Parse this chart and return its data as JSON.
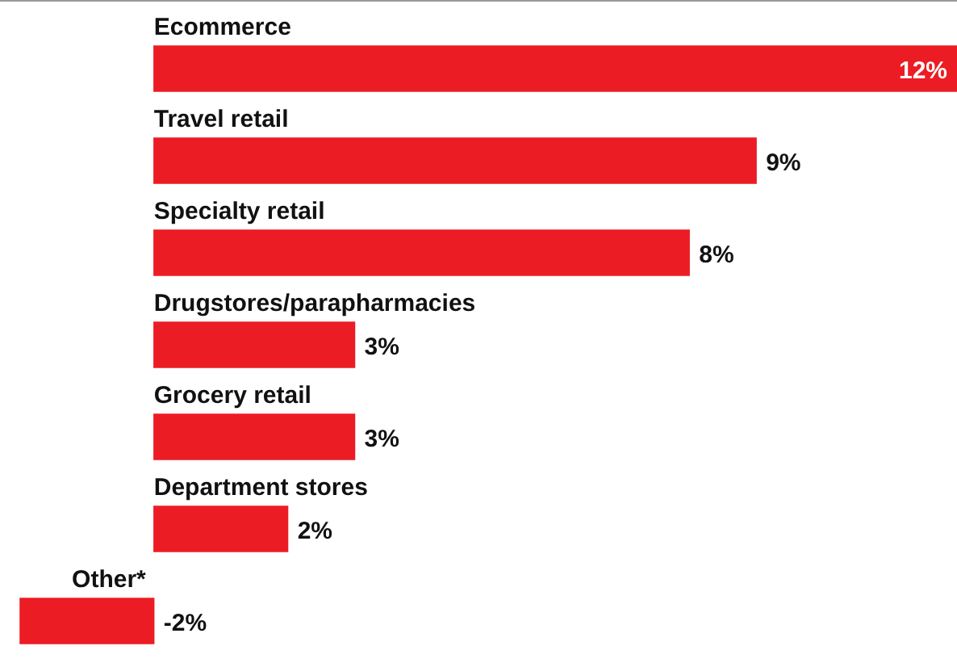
{
  "chart_data": {
    "type": "bar",
    "orientation": "horizontal",
    "categories": [
      "Ecommerce",
      "Travel retail",
      "Specialty retail",
      "Drugstores/parapharmacies",
      "Grocery retail",
      "Department stores",
      "Other*"
    ],
    "values": [
      12,
      9,
      8,
      3,
      3,
      2,
      -2
    ],
    "value_labels": [
      "12%",
      "9%",
      "8%",
      "3%",
      "3%",
      "2%",
      "-2%"
    ],
    "color": "#ec1c24"
  }
}
